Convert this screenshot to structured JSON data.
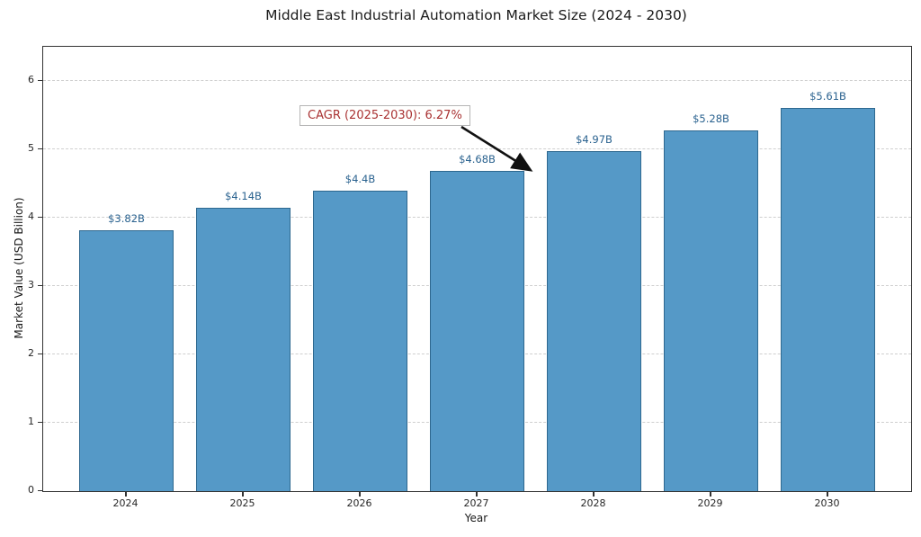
{
  "chart_data": {
    "type": "bar",
    "title": "Middle East Industrial Automation Market Size (2024 - 2030)",
    "xlabel": "Year",
    "ylabel": "Market Value (USD Billion)",
    "categories": [
      "2024",
      "2025",
      "2026",
      "2027",
      "2028",
      "2029",
      "2030"
    ],
    "values": [
      3.82,
      4.14,
      4.4,
      4.68,
      4.97,
      5.28,
      5.61
    ],
    "bar_labels": [
      "$3.82B",
      "$4.14B",
      "$4.4B",
      "$4.68B",
      "$4.97B",
      "$5.28B",
      "$5.61B"
    ],
    "ylim": [
      0,
      6.5
    ],
    "yticks": [
      0,
      1,
      2,
      3,
      4,
      5,
      6
    ],
    "grid": "horizontal-dashed",
    "legend": "none",
    "annotation": {
      "text": "CAGR (2025-2030): 6.27%",
      "points_to": "top of 2027 bar"
    },
    "colors": {
      "bar_fill": "#5599c7",
      "bar_edge": "#2e688f",
      "value_label": "#2a628f",
      "annotation_text": "#a93232",
      "annotation_border": "#b5b5b5",
      "arrow": "#111111",
      "grid_line": "#cfcfcf",
      "axis": "#333333"
    }
  }
}
